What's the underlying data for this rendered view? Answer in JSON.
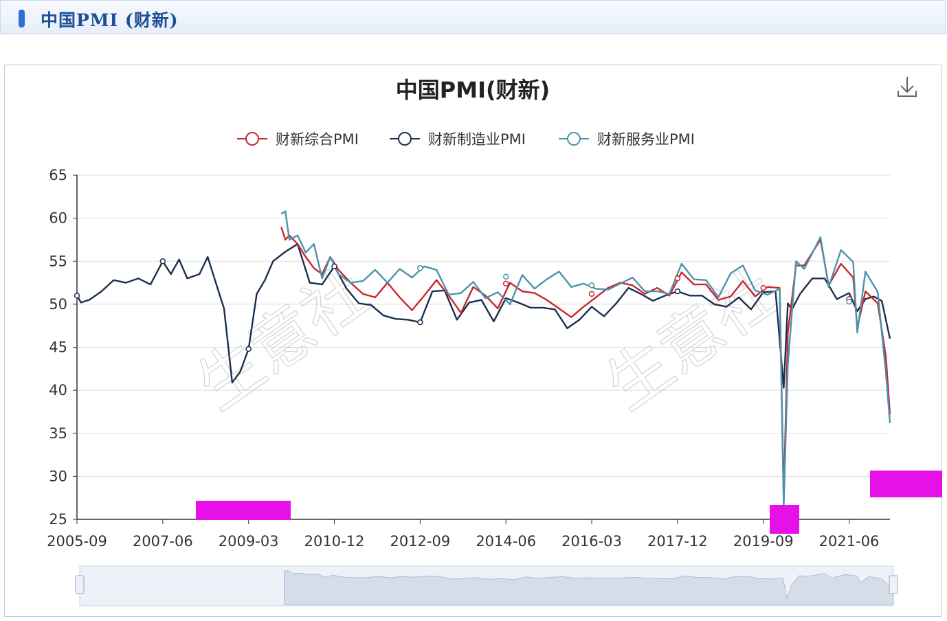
{
  "header": {
    "title": "中国PMI (财新)"
  },
  "colors": {
    "composite": "#c9262d",
    "manufacturing": "#1a2e4f",
    "services": "#4a93ad",
    "grid": "#dddddd",
    "magenta": "#e810e8"
  },
  "toolbar": {
    "download_icon": "download-icon"
  },
  "chart_data": {
    "type": "line",
    "title": "中国PMI(财新)",
    "xlabel": "",
    "ylabel": "",
    "ylim": [
      25,
      65
    ],
    "yticks": [
      25,
      30,
      35,
      40,
      45,
      50,
      55,
      60,
      65
    ],
    "xticks": [
      "2005-09",
      "2007-06",
      "2009-03",
      "2010-12",
      "2012-09",
      "2014-06",
      "2016-03",
      "2017-12",
      "2019-09",
      "2021-06"
    ],
    "x_range": [
      "2005-09",
      "2022-04"
    ],
    "grid": true,
    "legend_position": "top-center",
    "watermark": "生意社",
    "series": [
      {
        "name": "财新综合PMI",
        "key": "composite",
        "points": [
          [
            "2009-11",
            59
          ],
          [
            "2009-12",
            57.5
          ],
          [
            "2010-01",
            58
          ],
          [
            "2010-03",
            57
          ],
          [
            "2010-05",
            55.5
          ],
          [
            "2010-07",
            54.2
          ],
          [
            "2010-09",
            53.5
          ],
          [
            "2010-11",
            55.5
          ],
          [
            "2011-01",
            54
          ],
          [
            "2011-04",
            52.5
          ],
          [
            "2011-07",
            51.2
          ],
          [
            "2011-10",
            50.8
          ],
          [
            "2012-01",
            52.5
          ],
          [
            "2012-04",
            50.8
          ],
          [
            "2012-07",
            49.3
          ],
          [
            "2012-10",
            51
          ],
          [
            "2013-01",
            52.8
          ],
          [
            "2013-04",
            51
          ],
          [
            "2013-07",
            49
          ],
          [
            "2013-10",
            52
          ],
          [
            "2014-01",
            51
          ],
          [
            "2014-04",
            49.5
          ],
          [
            "2014-07",
            52.5
          ],
          [
            "2014-10",
            51.5
          ],
          [
            "2015-01",
            51.3
          ],
          [
            "2015-04",
            50.5
          ],
          [
            "2015-07",
            49.5
          ],
          [
            "2015-10",
            48.5
          ],
          [
            "2016-01",
            49.7
          ],
          [
            "2016-04",
            50.8
          ],
          [
            "2016-07",
            51.9
          ],
          [
            "2016-10",
            52.5
          ],
          [
            "2017-01",
            52.2
          ],
          [
            "2017-04",
            51.2
          ],
          [
            "2017-07",
            51.9
          ],
          [
            "2017-10",
            51
          ],
          [
            "2018-01",
            53.7
          ],
          [
            "2018-04",
            52.3
          ],
          [
            "2018-07",
            52.3
          ],
          [
            "2018-10",
            50.5
          ],
          [
            "2019-01",
            50.9
          ],
          [
            "2019-04",
            52.7
          ],
          [
            "2019-07",
            50.9
          ],
          [
            "2019-10",
            52
          ],
          [
            "2020-01",
            51.9
          ],
          [
            "2020-02",
            27.5
          ],
          [
            "2020-03",
            46.7
          ],
          [
            "2020-05",
            54.5
          ],
          [
            "2020-07",
            54.5
          ],
          [
            "2020-11",
            57.5
          ],
          [
            "2021-01",
            52.2
          ],
          [
            "2021-04",
            54.7
          ],
          [
            "2021-07",
            53.1
          ],
          [
            "2021-08",
            47.2
          ],
          [
            "2021-10",
            51.5
          ],
          [
            "2022-01",
            50.1
          ],
          [
            "2022-03",
            43.9
          ],
          [
            "2022-04",
            37.2
          ]
        ]
      },
      {
        "name": "财新制造业PMI",
        "key": "manufacturing",
        "points": [
          [
            "2005-09",
            51
          ],
          [
            "2005-10",
            50.2
          ],
          [
            "2005-12",
            50.5
          ],
          [
            "2006-03",
            51.5
          ],
          [
            "2006-06",
            52.8
          ],
          [
            "2006-09",
            52.5
          ],
          [
            "2006-12",
            53
          ],
          [
            "2007-03",
            52.3
          ],
          [
            "2007-06",
            55
          ],
          [
            "2007-08",
            53.5
          ],
          [
            "2007-10",
            55.2
          ],
          [
            "2007-12",
            53
          ],
          [
            "2008-03",
            53.5
          ],
          [
            "2008-05",
            55.5
          ],
          [
            "2008-07",
            52.5
          ],
          [
            "2008-09",
            49.5
          ],
          [
            "2008-11",
            40.9
          ],
          [
            "2009-01",
            42.2
          ],
          [
            "2009-03",
            44.8
          ],
          [
            "2009-05",
            51.2
          ],
          [
            "2009-07",
            52.8
          ],
          [
            "2009-09",
            55
          ],
          [
            "2009-12",
            56.1
          ],
          [
            "2010-03",
            57
          ],
          [
            "2010-06",
            52.5
          ],
          [
            "2010-09",
            52.3
          ],
          [
            "2010-12",
            54.4
          ],
          [
            "2011-03",
            51.8
          ],
          [
            "2011-06",
            50.1
          ],
          [
            "2011-09",
            49.9
          ],
          [
            "2011-12",
            48.7
          ],
          [
            "2012-03",
            48.3
          ],
          [
            "2012-06",
            48.2
          ],
          [
            "2012-09",
            47.9
          ],
          [
            "2012-12",
            51.5
          ],
          [
            "2013-03",
            51.6
          ],
          [
            "2013-06",
            48.2
          ],
          [
            "2013-09",
            50.2
          ],
          [
            "2013-12",
            50.5
          ],
          [
            "2014-03",
            48
          ],
          [
            "2014-06",
            50.7
          ],
          [
            "2014-09",
            50.2
          ],
          [
            "2014-12",
            49.6
          ],
          [
            "2015-03",
            49.6
          ],
          [
            "2015-06",
            49.4
          ],
          [
            "2015-09",
            47.2
          ],
          [
            "2015-12",
            48.2
          ],
          [
            "2016-03",
            49.7
          ],
          [
            "2016-06",
            48.6
          ],
          [
            "2016-09",
            50.1
          ],
          [
            "2016-12",
            51.9
          ],
          [
            "2017-03",
            51.2
          ],
          [
            "2017-06",
            50.4
          ],
          [
            "2017-09",
            51
          ],
          [
            "2017-12",
            51.5
          ],
          [
            "2018-03",
            51
          ],
          [
            "2018-06",
            51
          ],
          [
            "2018-09",
            50
          ],
          [
            "2018-12",
            49.7
          ],
          [
            "2019-03",
            50.8
          ],
          [
            "2019-06",
            49.4
          ],
          [
            "2019-09",
            51.4
          ],
          [
            "2019-12",
            51.5
          ],
          [
            "2020-02",
            40.3
          ],
          [
            "2020-03",
            50.1
          ],
          [
            "2020-04",
            49.4
          ],
          [
            "2020-06",
            51.2
          ],
          [
            "2020-09",
            53
          ],
          [
            "2020-12",
            53
          ],
          [
            "2021-03",
            50.6
          ],
          [
            "2021-06",
            51.3
          ],
          [
            "2021-08",
            49.2
          ],
          [
            "2021-10",
            50.6
          ],
          [
            "2021-12",
            50.9
          ],
          [
            "2022-02",
            50.4
          ],
          [
            "2022-04",
            46
          ]
        ]
      },
      {
        "name": "财新服务业PMI",
        "key": "services",
        "points": [
          [
            "2009-11",
            60.5
          ],
          [
            "2009-12",
            60.8
          ],
          [
            "2010-01",
            57.5
          ],
          [
            "2010-03",
            58
          ],
          [
            "2010-05",
            56
          ],
          [
            "2010-07",
            57
          ],
          [
            "2010-09",
            53
          ],
          [
            "2010-11",
            55.5
          ],
          [
            "2011-01",
            53.5
          ],
          [
            "2011-04",
            52.5
          ],
          [
            "2011-07",
            52.7
          ],
          [
            "2011-10",
            54
          ],
          [
            "2012-01",
            52.5
          ],
          [
            "2012-04",
            54.1
          ],
          [
            "2012-07",
            53.1
          ],
          [
            "2012-10",
            54.4
          ],
          [
            "2013-01",
            54
          ],
          [
            "2013-04",
            51.1
          ],
          [
            "2013-07",
            51.3
          ],
          [
            "2013-10",
            52.6
          ],
          [
            "2014-01",
            50.7
          ],
          [
            "2014-04",
            51.4
          ],
          [
            "2014-07",
            50
          ],
          [
            "2014-10",
            53.4
          ],
          [
            "2015-01",
            51.8
          ],
          [
            "2015-04",
            52.9
          ],
          [
            "2015-07",
            53.8
          ],
          [
            "2015-10",
            52
          ],
          [
            "2016-01",
            52.4
          ],
          [
            "2016-04",
            51.8
          ],
          [
            "2016-07",
            51.7
          ],
          [
            "2016-10",
            52.4
          ],
          [
            "2017-01",
            53.1
          ],
          [
            "2017-04",
            51.5
          ],
          [
            "2017-07",
            51.5
          ],
          [
            "2017-10",
            51.2
          ],
          [
            "2018-01",
            54.7
          ],
          [
            "2018-04",
            52.9
          ],
          [
            "2018-07",
            52.8
          ],
          [
            "2018-10",
            50.8
          ],
          [
            "2019-01",
            53.6
          ],
          [
            "2019-04",
            54.5
          ],
          [
            "2019-07",
            51.6
          ],
          [
            "2019-10",
            51.1
          ],
          [
            "2020-01",
            51.8
          ],
          [
            "2020-02",
            26.5
          ],
          [
            "2020-03",
            43
          ],
          [
            "2020-05",
            55
          ],
          [
            "2020-07",
            54.1
          ],
          [
            "2020-11",
            57.8
          ],
          [
            "2021-01",
            52
          ],
          [
            "2021-04",
            56.3
          ],
          [
            "2021-07",
            54.9
          ],
          [
            "2021-08",
            46.7
          ],
          [
            "2021-10",
            53.8
          ],
          [
            "2022-01",
            51.4
          ],
          [
            "2022-03",
            42
          ],
          [
            "2022-04",
            36.2
          ]
        ]
      }
    ],
    "markers": [
      {
        "series": "manufacturing",
        "x": "2005-09",
        "y": 51
      },
      {
        "series": "manufacturing",
        "x": "2007-06",
        "y": 55
      },
      {
        "series": "manufacturing",
        "x": "2009-03",
        "y": 44.8
      },
      {
        "series": "manufacturing",
        "x": "2010-12",
        "y": 54.4
      },
      {
        "series": "manufacturing",
        "x": "2012-09",
        "y": 47.9
      },
      {
        "series": "services",
        "x": "2012-09",
        "y": 54.2
      },
      {
        "series": "composite",
        "x": "2014-06",
        "y": 52.4
      },
      {
        "series": "services",
        "x": "2014-06",
        "y": 53.2
      },
      {
        "series": "composite",
        "x": "2016-03",
        "y": 51.2
      },
      {
        "series": "services",
        "x": "2016-03",
        "y": 52.2
      },
      {
        "series": "composite",
        "x": "2017-12",
        "y": 53.0
      },
      {
        "series": "manufacturing",
        "x": "2017-12",
        "y": 51.5
      },
      {
        "series": "composite",
        "x": "2019-09",
        "y": 51.9
      },
      {
        "series": "composite",
        "x": "2021-06",
        "y": 50.6
      },
      {
        "series": "services",
        "x": "2021-06",
        "y": 50.3
      }
    ]
  }
}
